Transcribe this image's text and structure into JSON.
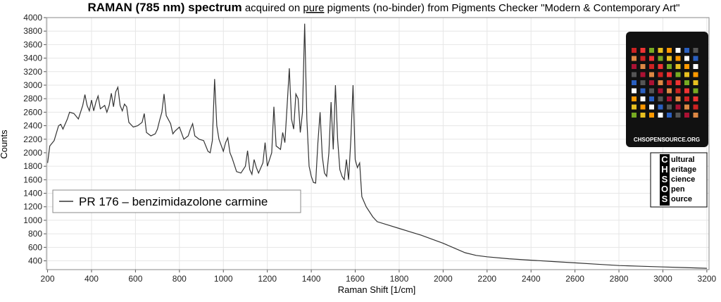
{
  "chart_data": {
    "type": "line",
    "title_parts": [
      "RAMAN (785 nm) spectrum",
      "acquired on",
      "pure",
      "pigments (no-binder) from Pigments Checker \"Modern & Contemporary Art\""
    ],
    "x_label": "Raman Shift [1/cm]",
    "y_label": "Counts",
    "x": [
      200,
      210,
      230,
      250,
      260,
      270,
      290,
      300,
      320,
      340,
      360,
      370,
      380,
      390,
      400,
      410,
      420,
      430,
      440,
      460,
      470,
      480,
      490,
      500,
      510,
      520,
      530,
      540,
      550,
      560,
      570,
      590,
      610,
      630,
      640,
      650,
      670,
      690,
      700,
      710,
      720,
      730,
      740,
      760,
      770,
      780,
      800,
      820,
      840,
      850,
      860,
      870,
      890,
      910,
      930,
      940,
      950,
      960,
      970,
      980,
      1000,
      1010,
      1020,
      1030,
      1040,
      1060,
      1080,
      1100,
      1110,
      1120,
      1130,
      1140,
      1150,
      1160,
      1180,
      1190,
      1200,
      1220,
      1230,
      1240,
      1260,
      1270,
      1280,
      1290,
      1300,
      1310,
      1320,
      1330,
      1340,
      1350,
      1360,
      1370,
      1380,
      1390,
      1400,
      1410,
      1420,
      1430,
      1440,
      1450,
      1460,
      1470,
      1480,
      1490,
      1500,
      1510,
      1520,
      1530,
      1540,
      1550,
      1560,
      1570,
      1580,
      1590,
      1600,
      1610,
      1620,
      1630,
      1650,
      1680,
      1700,
      1750,
      1800,
      1850,
      1900,
      1950,
      2000,
      2050,
      2100,
      2150,
      2200,
      2300,
      2400,
      2500,
      2600,
      2700,
      2800,
      2900,
      3000,
      3100,
      3200
    ],
    "series": [
      {
        "name": "PR 176 – benzimidazolone carmine",
        "color": "#333333",
        "values": [
          1850,
          2100,
          2180,
          2400,
          2420,
          2350,
          2500,
          2600,
          2580,
          2500,
          2700,
          2860,
          2700,
          2620,
          2780,
          2620,
          2750,
          2840,
          2650,
          2700,
          2600,
          2700,
          2880,
          2680,
          2900,
          2970,
          2700,
          2620,
          2720,
          2680,
          2450,
          2380,
          2400,
          2450,
          2580,
          2300,
          2250,
          2280,
          2350,
          2480,
          2600,
          2870,
          2550,
          2430,
          2280,
          2320,
          2380,
          2200,
          2250,
          2350,
          2430,
          2250,
          2200,
          2180,
          2020,
          2000,
          2180,
          3090,
          2400,
          2200,
          2020,
          2150,
          2220,
          2000,
          1920,
          1720,
          1700,
          1800,
          2030,
          1750,
          1680,
          1900,
          1780,
          1700,
          1850,
          2150,
          1800,
          2000,
          2680,
          2100,
          2050,
          2300,
          2150,
          2700,
          3250,
          2500,
          2350,
          2870,
          2800,
          2300,
          2600,
          3910,
          2500,
          1800,
          1650,
          1560,
          1550,
          2150,
          2600,
          1950,
          1700,
          1650,
          2000,
          2750,
          2050,
          3000,
          2200,
          1750,
          1650,
          1600,
          1900,
          1600,
          2200,
          3000,
          1900,
          1780,
          1850,
          1350,
          1200,
          1050,
          980,
          930,
          880,
          830,
          780,
          720,
          660,
          590,
          520,
          480,
          460,
          430,
          410,
          390,
          370,
          350,
          330,
          320,
          310,
          300,
          290
        ]
      }
    ],
    "xlim": [
      195,
      3210
    ],
    "ylim": [
      270,
      4000
    ],
    "xticks": [
      200,
      400,
      600,
      800,
      1000,
      1200,
      1400,
      1600,
      1800,
      2000,
      2200,
      2400,
      2600,
      2800,
      3000,
      3200
    ],
    "yticks": [
      400,
      600,
      800,
      1000,
      1200,
      1400,
      1600,
      1800,
      2000,
      2200,
      2400,
      2600,
      2800,
      3000,
      3200,
      3400,
      3600,
      3800,
      4000
    ],
    "grid": true,
    "logo": {
      "card_url": "CHSOPENSOURCE.ORG",
      "letters": [
        "C",
        "H",
        "S",
        "O",
        "S"
      ],
      "words": [
        "ultural",
        "eritage",
        "cience",
        "pen",
        "ource"
      ]
    }
  }
}
